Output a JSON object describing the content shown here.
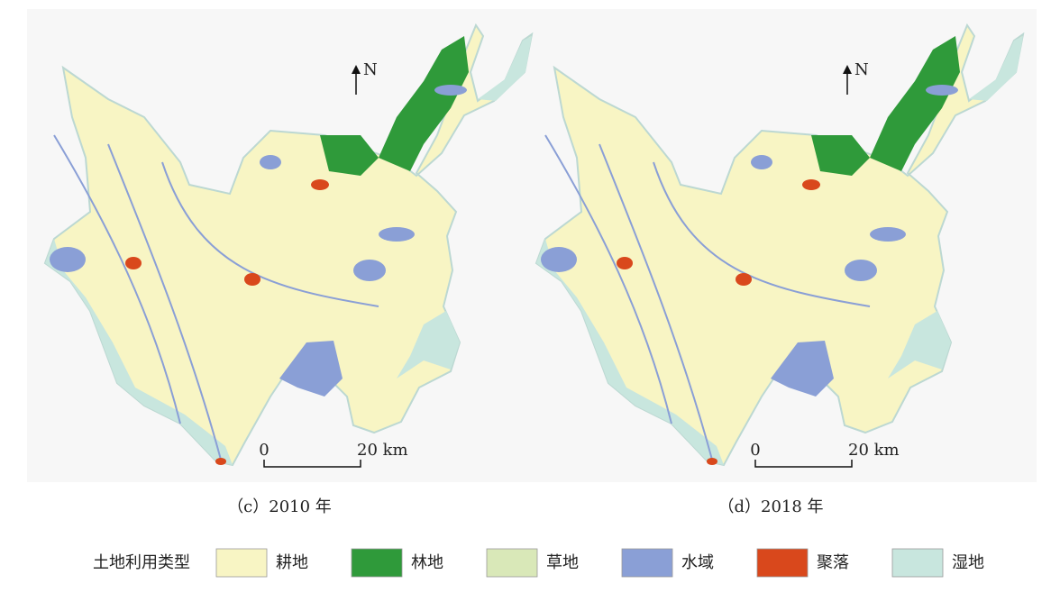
{
  "panels": [
    {
      "caption": "（c）2010 年",
      "north": "N",
      "scale_start": "0",
      "scale_end": "20 km"
    },
    {
      "caption": "（d）2018 年",
      "north": "N",
      "scale_start": "0",
      "scale_end": "20 km"
    }
  ],
  "legend": {
    "title": "土地利用类型",
    "items": [
      {
        "label": "耕地",
        "color": "#f8f5c4"
      },
      {
        "label": "林地",
        "color": "#2f9a3a"
      },
      {
        "label": "草地",
        "color": "#d9e8b8"
      },
      {
        "label": "水域",
        "color": "#8a9fd6"
      },
      {
        "label": "聚落",
        "color": "#d9481c"
      },
      {
        "label": "湿地",
        "color": "#c8e6de"
      }
    ]
  }
}
